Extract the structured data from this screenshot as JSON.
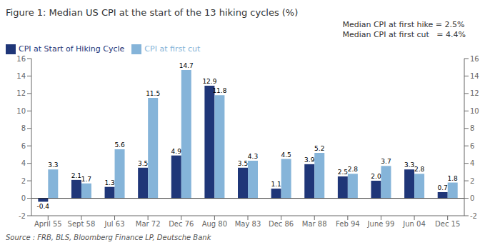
{
  "chart_data": {
    "type": "bar",
    "title": "Figure 1: Median US CPI at the start of the 13 hiking cycles (%)",
    "source": "Source : FRB, BLS, Bloomberg Finance LP, Deutsche Bank",
    "annotations": [
      "Median CPI at first hike = 2.5%",
      "Median CPI at first cut   = 4.4%"
    ],
    "categories": [
      "April 55",
      "Sept 58",
      "Jul 63",
      "Mar 72",
      "Dec 76",
      "Aug 80",
      "May 83",
      "Dec 86",
      "Mar 88",
      "Feb 94",
      "June 99",
      "Jun 04",
      "Dec 15"
    ],
    "series": [
      {
        "name": "CPI at Start of Hiking Cycle",
        "color": "#1f3678",
        "values": [
          -0.4,
          2.1,
          1.3,
          3.5,
          4.9,
          12.9,
          3.5,
          1.1,
          3.9,
          2.5,
          2.0,
          3.3,
          0.7
        ],
        "value_labels": [
          "-0.4",
          "2.1",
          "1.3",
          "3.5",
          "4.9",
          "12.9",
          "3.5",
          "1.1",
          "3.9",
          "2.5",
          "2.0",
          "3.3",
          "0.7"
        ]
      },
      {
        "name": "CPI at first cut",
        "color": "#85b4d9",
        "values": [
          3.3,
          1.7,
          5.6,
          11.5,
          14.7,
          11.8,
          4.3,
          4.5,
          5.2,
          2.8,
          3.7,
          2.8,
          1.8
        ]
      }
    ],
    "ylim": [
      -2,
      16
    ],
    "yticks": [
      -2,
      0,
      2,
      4,
      6,
      8,
      10,
      12,
      14,
      16
    ],
    "y2lim": [
      -2,
      16
    ],
    "y2ticks": [
      -2,
      0,
      2,
      4,
      6,
      8,
      10,
      12,
      14,
      16
    ],
    "grid": false,
    "legend": "upper left",
    "data_labels": true
  }
}
